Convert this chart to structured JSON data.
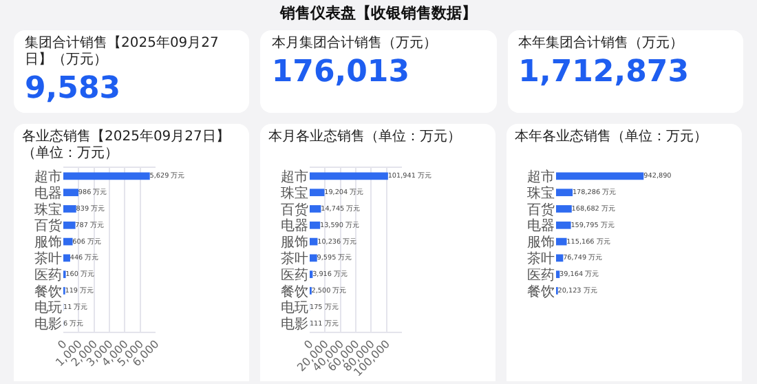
{
  "chart_data": [
    {
      "type": "other",
      "title": "销售仪表盘【收银销售数据】"
    },
    {
      "type": "other",
      "title": "集团合计销售【2025年09月27日】（万元）",
      "annotations": [
        "9,583"
      ]
    },
    {
      "type": "other",
      "title": "本月集团合计销售（万元）",
      "annotations": [
        "176,013"
      ]
    },
    {
      "type": "other",
      "title": "本年集团合计销售（万元）",
      "annotations": [
        "1,712,873"
      ]
    },
    {
      "type": "bar",
      "orientation": "horizontal",
      "title": "各业态销售【2025年09月27日】（单位：万元）",
      "categories": [
        "超市",
        "电器",
        "珠宝",
        "百货",
        "服饰",
        "茶叶",
        "医药",
        "餐饮",
        "电玩",
        "电影"
      ],
      "values": [
        5629,
        986,
        839,
        787,
        606,
        446,
        160,
        119,
        11,
        6
      ],
      "value_labels": [
        "5,629 万元",
        "986 万元",
        "839 万元",
        "787 万元",
        "606 万元",
        "446 万元",
        "160 万元",
        "119 万元",
        "11 万元",
        "6 万元"
      ],
      "color": "#2f6bf0",
      "xlim": [
        0,
        6000
      ],
      "xticks": [
        0,
        {
          "value": 1000,
          "label": "1,000"
        },
        {
          "value": 2000,
          "label": "2,000"
        },
        {
          "value": 3000,
          "label": "3,000"
        },
        {
          "value": 4000,
          "label": "4,000"
        },
        {
          "value": 5000,
          "label": "5,000"
        },
        {
          "value": 6000,
          "label": "6,000"
        }
      ],
      "grid": "x"
    },
    {
      "type": "bar",
      "orientation": "horizontal",
      "title": "本月各业态销售（单位：万元）",
      "categories": [
        "超市",
        "珠宝",
        "百货",
        "电器",
        "服饰",
        "茶叶",
        "医药",
        "餐饮",
        "电玩",
        "电影"
      ],
      "values": [
        101941,
        19204,
        14745,
        13590,
        10236,
        9595,
        3916,
        2500,
        175,
        111
      ],
      "value_labels": [
        "101,941 万元",
        "19,204 万元",
        "14,745 万元",
        "13,590 万元",
        "10,236 万元",
        "9,595 万元",
        "3,916 万元",
        "2,500 万元",
        "175 万元",
        "111 万元"
      ],
      "color": "#2f6bf0",
      "xlim": [
        0,
        120000
      ],
      "xticks": [
        0,
        {
          "value": 20000,
          "label": "20,000"
        },
        {
          "value": 40000,
          "label": "40,000"
        },
        {
          "value": 60000,
          "label": "60,000"
        },
        {
          "value": 80000,
          "label": "80,000"
        },
        {
          "value": 100000,
          "label": "100,000"
        }
      ],
      "grid": "x"
    },
    {
      "type": "bar",
      "orientation": "horizontal",
      "title": "本年各业态销售（单位：万元）",
      "categories": [
        "超市",
        "珠宝",
        "百货",
        "电器",
        "服饰",
        "茶叶",
        "医药",
        "餐饮",
        null,
        null
      ],
      "values": [
        942890,
        178286,
        168682,
        159795,
        115166,
        76749,
        39164,
        20123,
        null,
        null
      ],
      "value_labels": [
        "942,890",
        "178,286 万元",
        "168,682 万元",
        "159,795 万元",
        "115,166 万元",
        "76,749 万元",
        "39,164 万元",
        "20,123 万元",
        null,
        null
      ],
      "color": "#2f6bf0"
    }
  ]
}
